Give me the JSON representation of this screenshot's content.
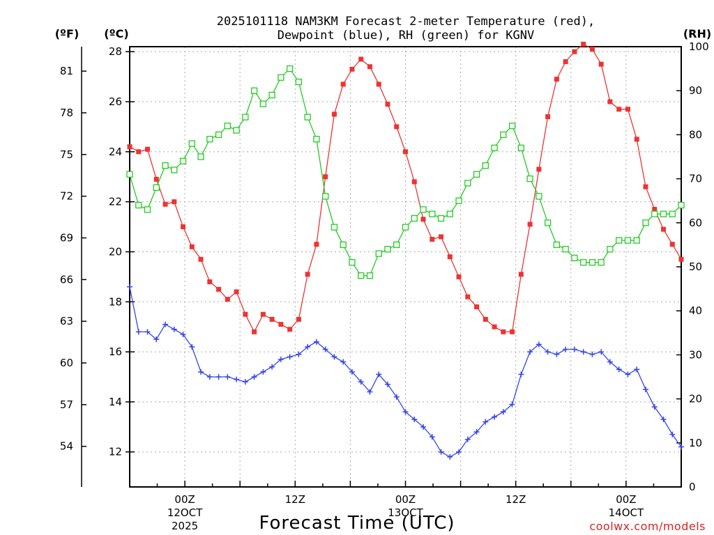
{
  "chart_data": {
    "type": "line",
    "title_line1": "2025101118 NAM3KM Forecast 2-meter Temperature (red),",
    "title_line2": "Dewpoint (blue), RH (green) for KGNV",
    "xlabel": "Forecast Time (UTC)",
    "watermark": "coolwx.com/models",
    "units": {
      "fahrenheit": "(ºF)",
      "celsius": "(ºC)",
      "rh": "(RH)"
    },
    "x_unit": "forecast hour from 2025-10-11 18Z",
    "xlim": [
      0,
      60
    ],
    "ylim_celsius": [
      10.6,
      28.2
    ],
    "ylim_rh": [
      0,
      100
    ],
    "celsius_ticks": [
      "12",
      "14",
      "16",
      "18",
      "20",
      "22",
      "24",
      "26",
      "28"
    ],
    "fahrenheit_ticks": [
      "54",
      "57",
      "60",
      "63",
      "66",
      "69",
      "72",
      "75",
      "78",
      "81"
    ],
    "rh_ticks": [
      "0",
      "10",
      "20",
      "30",
      "40",
      "50",
      "60",
      "70",
      "80",
      "90",
      "100"
    ],
    "x_ticks": [
      {
        "hour": 6,
        "line1": "00Z",
        "line2": "12OCT",
        "line3": "2025"
      },
      {
        "hour": 18,
        "line1": "12Z",
        "line2": "",
        "line3": ""
      },
      {
        "hour": 30,
        "line1": "00Z",
        "line2": "13OCT",
        "line3": ""
      },
      {
        "hour": 42,
        "line1": "12Z",
        "line2": "",
        "line3": ""
      },
      {
        "hour": 54,
        "line1": "00Z",
        "line2": "14OCT",
        "line3": ""
      }
    ],
    "series": [
      {
        "name": "2-meter Temperature",
        "axis": "celsius",
        "color": "#ee3333",
        "marker": "filled-square",
        "values": [
          24.2,
          24.0,
          24.1,
          22.9,
          21.9,
          22.0,
          21.0,
          20.2,
          19.7,
          18.8,
          18.5,
          18.1,
          18.4,
          17.5,
          16.8,
          17.5,
          17.3,
          17.1,
          16.9,
          17.3,
          19.1,
          20.3,
          23.0,
          25.5,
          26.7,
          27.3,
          27.7,
          27.4,
          26.7,
          25.9,
          25.0,
          24.0,
          22.8,
          21.3,
          20.5,
          20.6,
          19.8,
          19.0,
          18.2,
          17.8,
          17.3,
          17.0,
          16.8,
          16.8,
          19.1,
          21.1,
          23.3,
          25.4,
          26.9,
          27.6,
          28.0,
          28.3,
          28.1,
          27.5,
          26.0,
          25.7,
          25.7,
          24.5,
          22.6,
          21.7,
          20.9,
          20.3,
          19.7
        ]
      },
      {
        "name": "Dewpoint",
        "axis": "celsius",
        "color": "#3344ee",
        "marker": "plus",
        "values": [
          18.6,
          16.8,
          16.8,
          16.5,
          17.1,
          16.9,
          16.7,
          16.2,
          15.2,
          15.0,
          15.0,
          15.0,
          14.9,
          14.8,
          15.0,
          15.2,
          15.4,
          15.7,
          15.8,
          15.9,
          16.2,
          16.4,
          16.1,
          15.8,
          15.6,
          15.2,
          14.8,
          14.4,
          15.1,
          14.7,
          14.2,
          13.6,
          13.3,
          13.0,
          12.6,
          12.0,
          11.8,
          12.0,
          12.5,
          12.8,
          13.2,
          13.4,
          13.6,
          13.9,
          15.1,
          16.0,
          16.3,
          16.0,
          15.9,
          16.1,
          16.1,
          16.0,
          15.9,
          16.0,
          15.6,
          15.3,
          15.1,
          15.3,
          14.5,
          13.8,
          13.3,
          12.7,
          12.2
        ]
      },
      {
        "name": "Relative Humidity",
        "axis": "rh",
        "color": "#22cc22",
        "marker": "open-square",
        "values": [
          71,
          64,
          63,
          68,
          73,
          72,
          74,
          78,
          75,
          79,
          80,
          82,
          81,
          84,
          90,
          87,
          89,
          93,
          95,
          92,
          84,
          79,
          66,
          59,
          55,
          51,
          48,
          48,
          53,
          54,
          55,
          59,
          61,
          63,
          62,
          61,
          62,
          65,
          69,
          71,
          73,
          77,
          80,
          82,
          77,
          70,
          66,
          60,
          55,
          54,
          52,
          51,
          51,
          51,
          54,
          56,
          56,
          56,
          60,
          62,
          62,
          62,
          64
        ]
      }
    ]
  }
}
